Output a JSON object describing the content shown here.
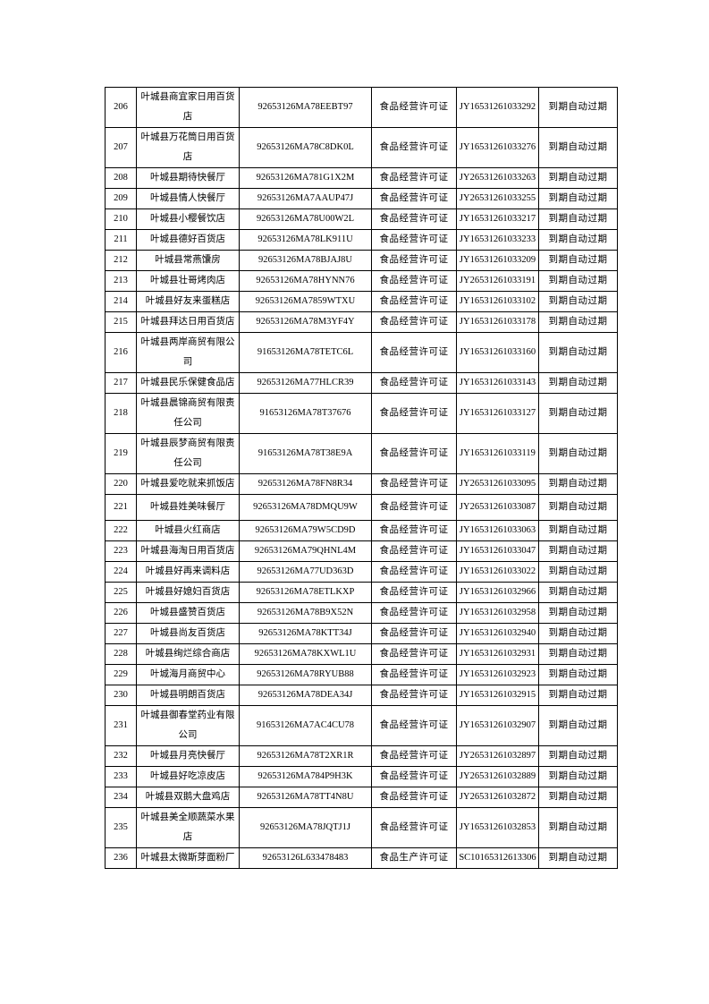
{
  "page": {
    "background": "#ffffff",
    "text_color": "#000000",
    "border_color": "#000000"
  },
  "table": {
    "rows": [
      {
        "no": "206",
        "name": "叶城县商宜家日用百货店",
        "credit_code": "92653126MA78EEBT97",
        "license_type": "食品经营许可证",
        "license_no": "JY16531261033292",
        "status": "到期自动过期"
      },
      {
        "no": "207",
        "name": "叶城县万花筒日用百货店",
        "credit_code": "92653126MA78C8DK0L",
        "license_type": "食品经营许可证",
        "license_no": "JY16531261033276",
        "status": "到期自动过期"
      },
      {
        "no": "208",
        "name": "叶城县期待快餐厅",
        "credit_code": "92653126MA781G1X2M",
        "license_type": "食品经营许可证",
        "license_no": "JY26531261033263",
        "status": "到期自动过期"
      },
      {
        "no": "209",
        "name": "叶城县情人快餐厅",
        "credit_code": "92653126MA7AAUP47J",
        "license_type": "食品经营许可证",
        "license_no": "JY26531261033255",
        "status": "到期自动过期"
      },
      {
        "no": "210",
        "name": "叶城县小樱餐饮店",
        "credit_code": "92653126MA78U00W2L",
        "license_type": "食品经营许可证",
        "license_no": "JY16531261033217",
        "status": "到期自动过期"
      },
      {
        "no": "211",
        "name": "叶城县德好百货店",
        "credit_code": "92653126MA78LK911U",
        "license_type": "食品经营许可证",
        "license_no": "JY16531261033233",
        "status": "到期自动过期"
      },
      {
        "no": "212",
        "name": "叶城县常燕馕房",
        "credit_code": "92653126MA78BJAJ8U",
        "license_type": "食品经营许可证",
        "license_no": "JY16531261033209",
        "status": "到期自动过期"
      },
      {
        "no": "213",
        "name": "叶城县壮哥烤肉店",
        "credit_code": "92653126MA78HYNN76",
        "license_type": "食品经营许可证",
        "license_no": "JY26531261033191",
        "status": "到期自动过期"
      },
      {
        "no": "214",
        "name": "叶城县好友来蛋糕店",
        "credit_code": "92653126MA7859WTXU",
        "license_type": "食品经营许可证",
        "license_no": "JY16531261033102",
        "status": "到期自动过期"
      },
      {
        "no": "215",
        "name": "叶城县拜达日用百货店",
        "credit_code": "92653126MA78M3YF4Y",
        "license_type": "食品经营许可证",
        "license_no": "JY16531261033178",
        "status": "到期自动过期"
      },
      {
        "no": "216",
        "name": "叶城县两岸商贸有限公司",
        "credit_code": "91653126MA78TETC6L",
        "license_type": "食品经营许可证",
        "license_no": "JY16531261033160",
        "status": "到期自动过期"
      },
      {
        "no": "217",
        "name": "叶城县民乐保健食品店",
        "credit_code": "92653126MA77HLCR39",
        "license_type": "食品经营许可证",
        "license_no": "JY16531261033143",
        "status": "到期自动过期"
      },
      {
        "no": "218",
        "name": "叶城县晨锦商贸有限责任公司",
        "credit_code": "91653126MA78T37676",
        "license_type": "食品经营许可证",
        "license_no": "JY16531261033127",
        "status": "到期自动过期"
      },
      {
        "no": "219",
        "name": "叶城县辰梦商贸有限责任公司",
        "credit_code": "91653126MA78T38E9A",
        "license_type": "食品经营许可证",
        "license_no": "JY16531261033119",
        "status": "到期自动过期"
      },
      {
        "no": "220",
        "name": "叶城县爱吃就来抓饭店",
        "credit_code": "92653126MA78FN8R34",
        "license_type": "食品经营许可证",
        "license_no": "JY26531261033095",
        "status": "到期自动过期"
      },
      {
        "no": "221",
        "name": "叶城县姓美味餐厅",
        "credit_code": "92653126MA78DMQU9W",
        "license_type": "食品经营许可证",
        "license_no": "JY26531261033087",
        "status": "到期自动过期"
      },
      {
        "no": "222",
        "name": "叶城县火红商店",
        "credit_code": "92653126MA79W5CD9D",
        "license_type": "食品经营许可证",
        "license_no": "JY16531261033063",
        "status": "到期自动过期"
      },
      {
        "no": "223",
        "name": "叶城县海淘日用百货店",
        "credit_code": "92653126MA79QHNL4M",
        "license_type": "食品经营许可证",
        "license_no": "JY16531261033047",
        "status": "到期自动过期"
      },
      {
        "no": "224",
        "name": "叶城县好再来调料店",
        "credit_code": "92653126MA77UD363D",
        "license_type": "食品经营许可证",
        "license_no": "JY16531261033022",
        "status": "到期自动过期"
      },
      {
        "no": "225",
        "name": "叶城县好媳妇百货店",
        "credit_code": "92653126MA78ETLKXP",
        "license_type": "食品经营许可证",
        "license_no": "JY16531261032966",
        "status": "到期自动过期"
      },
      {
        "no": "226",
        "name": "叶城县盛赞百货店",
        "credit_code": "92653126MA78B9X52N",
        "license_type": "食品经营许可证",
        "license_no": "JY16531261032958",
        "status": "到期自动过期"
      },
      {
        "no": "227",
        "name": "叶城县尚友百货店",
        "credit_code": "92653126MA78KTT34J",
        "license_type": "食品经营许可证",
        "license_no": "JY16531261032940",
        "status": "到期自动过期"
      },
      {
        "no": "228",
        "name": "叶城县绚烂综合商店",
        "credit_code": "92653126MA78KXWL1U",
        "license_type": "食品经营许可证",
        "license_no": "JY16531261032931",
        "status": "到期自动过期"
      },
      {
        "no": "229",
        "name": "叶城海月商贸中心",
        "credit_code": "92653126MA78RYUB88",
        "license_type": "食品经营许可证",
        "license_no": "JY16531261032923",
        "status": "到期自动过期"
      },
      {
        "no": "230",
        "name": "叶城县明朗百货店",
        "credit_code": "92653126MA78DEA34J",
        "license_type": "食品经营许可证",
        "license_no": "JY16531261032915",
        "status": "到期自动过期"
      },
      {
        "no": "231",
        "name": "叶城县御春堂药业有限公司",
        "credit_code": "91653126MA7AC4CU78",
        "license_type": "食品经营许可证",
        "license_no": "JY16531261032907",
        "status": "到期自动过期"
      },
      {
        "no": "232",
        "name": "叶城县月亮快餐厅",
        "credit_code": "92653126MA78T2XR1R",
        "license_type": "食品经营许可证",
        "license_no": "JY26531261032897",
        "status": "到期自动过期"
      },
      {
        "no": "233",
        "name": "叶城县好吃凉皮店",
        "credit_code": "92653126MA784P9H3K",
        "license_type": "食品经营许可证",
        "license_no": "JY26531261032889",
        "status": "到期自动过期"
      },
      {
        "no": "234",
        "name": "叶城县双鹅大盘鸡店",
        "credit_code": "92653126MA78TT4N8U",
        "license_type": "食品经营许可证",
        "license_no": "JY26531261032872",
        "status": "到期自动过期"
      },
      {
        "no": "235",
        "name": "叶城县美全顺蔬菜水果店",
        "credit_code": "92653126MA78JQTJ1J",
        "license_type": "食品经营许可证",
        "license_no": "JY16531261032853",
        "status": "到期自动过期"
      },
      {
        "no": "236",
        "name": "叶城县太微斯芽面粉厂",
        "credit_code": "92653126L633478483",
        "license_type": "食品生产许可证",
        "license_no": "SC10165312613306",
        "status": "到期自动过期"
      }
    ]
  }
}
